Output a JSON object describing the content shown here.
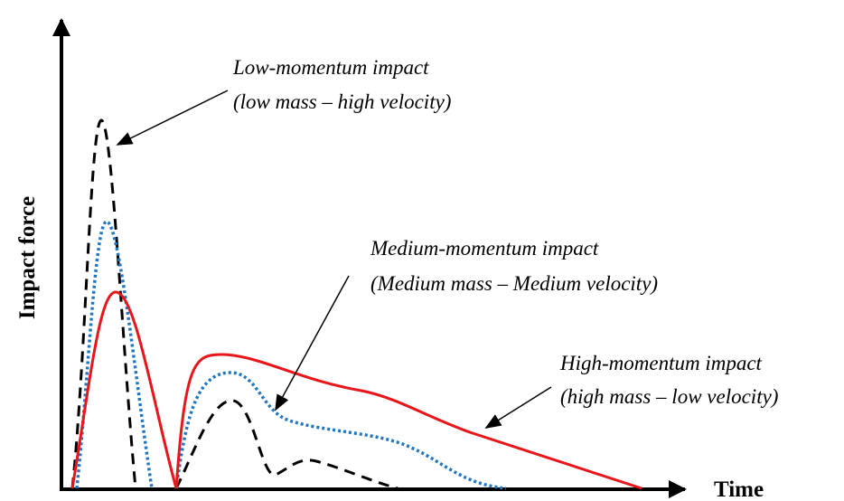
{
  "axes": {
    "y_label": "Impact force",
    "x_label": "Time"
  },
  "annotations": [
    {
      "title": "Low-momentum impact",
      "subtitle": "(low mass – high velocity)"
    },
    {
      "title": "Medium-momentum impact",
      "subtitle": "(Medium mass – Medium velocity)"
    },
    {
      "title": "High-momentum impact",
      "subtitle": "(high mass – low velocity)"
    }
  ]
}
